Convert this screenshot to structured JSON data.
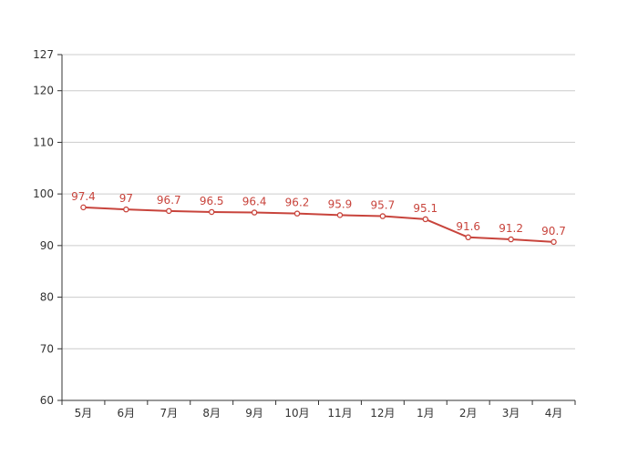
{
  "chart_data": {
    "type": "line",
    "title": "",
    "xlabel": "",
    "ylabel": "",
    "categories": [
      "5月",
      "6月",
      "7月",
      "8月",
      "9月",
      "10月",
      "11月",
      "12月",
      "1月",
      "2月",
      "3月",
      "4月"
    ],
    "values": [
      97.4,
      97,
      96.7,
      96.5,
      96.4,
      96.2,
      95.9,
      95.7,
      95.1,
      91.6,
      91.2,
      90.7
    ],
    "labels": [
      "97.4",
      "97",
      "96.7",
      "96.5",
      "96.4",
      "96.2",
      "95.9",
      "95.7",
      "95.1",
      "91.6",
      "91.2",
      "90.7"
    ],
    "ylim": [
      60,
      127
    ],
    "yticks": [
      60,
      70,
      80,
      90,
      100,
      110,
      120,
      127
    ],
    "grid": true,
    "legend": "none",
    "colors": {
      "line": "#c8443c",
      "marker_fill": "#ffffff",
      "data_label": "#c8443c",
      "axis": "#333333",
      "axis_label": "#333333",
      "gridline": "#cccccc",
      "background": "#ffffff"
    }
  }
}
